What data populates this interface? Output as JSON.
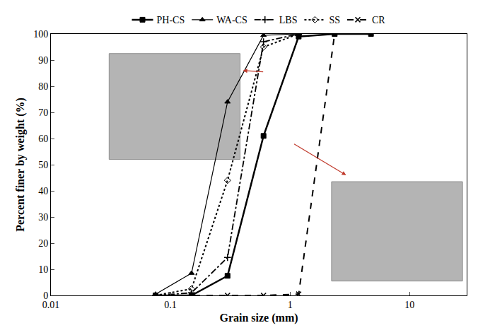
{
  "chart_data": {
    "type": "line",
    "x_label": "Grain size (mm)",
    "y_label": "Percent finer by weight (%)",
    "x": [
      0.075,
      0.15,
      0.3,
      0.6,
      1.18,
      2.36,
      4.75
    ],
    "series": [
      {
        "name": "PH-CS",
        "color": "#000000",
        "marker": "square",
        "line_style": "solid",
        "values": [
          0,
          0,
          7.5,
          61,
          99,
          100,
          100
        ]
      },
      {
        "name": "WA-CS",
        "color": "#000000",
        "marker": "triangle-up",
        "line_style": "solid",
        "values": [
          0.5,
          8.5,
          74,
          99.5,
          100,
          null,
          null
        ]
      },
      {
        "name": "LBS",
        "color": "#000000",
        "marker": "cross",
        "line_style": "dashdot",
        "values": [
          0,
          1,
          14.5,
          97,
          100,
          null,
          null
        ]
      },
      {
        "name": "SS",
        "color": "#000000",
        "marker": "diamond-open",
        "line_style": "dot",
        "values": [
          0,
          2.5,
          44,
          95,
          100,
          null,
          null
        ]
      },
      {
        "name": "CR",
        "color": "#000000",
        "marker": "x",
        "line_style": "dash",
        "values": [
          0,
          0,
          0,
          0,
          0.5,
          100,
          null
        ]
      }
    ],
    "log": "x",
    "xlim": [
      0.01,
      30
    ],
    "xticks": [
      0.01,
      0.1,
      1,
      10
    ],
    "ylim": [
      0,
      100
    ],
    "yticks": [
      0,
      10,
      20,
      30,
      40,
      50,
      60,
      70,
      80,
      90,
      100
    ],
    "grid": false,
    "legend": "top"
  }
}
